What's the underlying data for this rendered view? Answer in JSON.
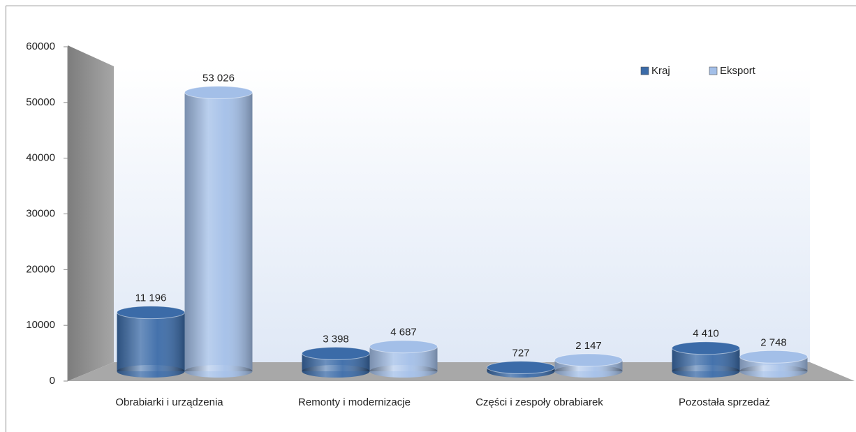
{
  "chart_data": {
    "type": "bar3d",
    "categories": [
      "Obrabiarki i urządzenia",
      "Remonty i modernizacje",
      "Części i zespoły obrabiarek",
      "Pozostała sprzedaż"
    ],
    "series": [
      {
        "name": "Kraj",
        "color": "#3b6ba8",
        "values": [
          11196,
          3398,
          727,
          4410
        ],
        "value_labels": [
          "11 196",
          "3 398",
          "727",
          "4 410"
        ]
      },
      {
        "name": "Eksport",
        "color": "#a3bfe8",
        "values": [
          53026,
          4687,
          2147,
          2748
        ],
        "value_labels": [
          "53 026",
          "4 687",
          "2 147",
          "2 748"
        ]
      }
    ],
    "ylim": [
      0,
      60000
    ],
    "yticks": [
      0,
      10000,
      20000,
      30000,
      40000,
      50000,
      60000
    ],
    "legend": "top-right"
  }
}
